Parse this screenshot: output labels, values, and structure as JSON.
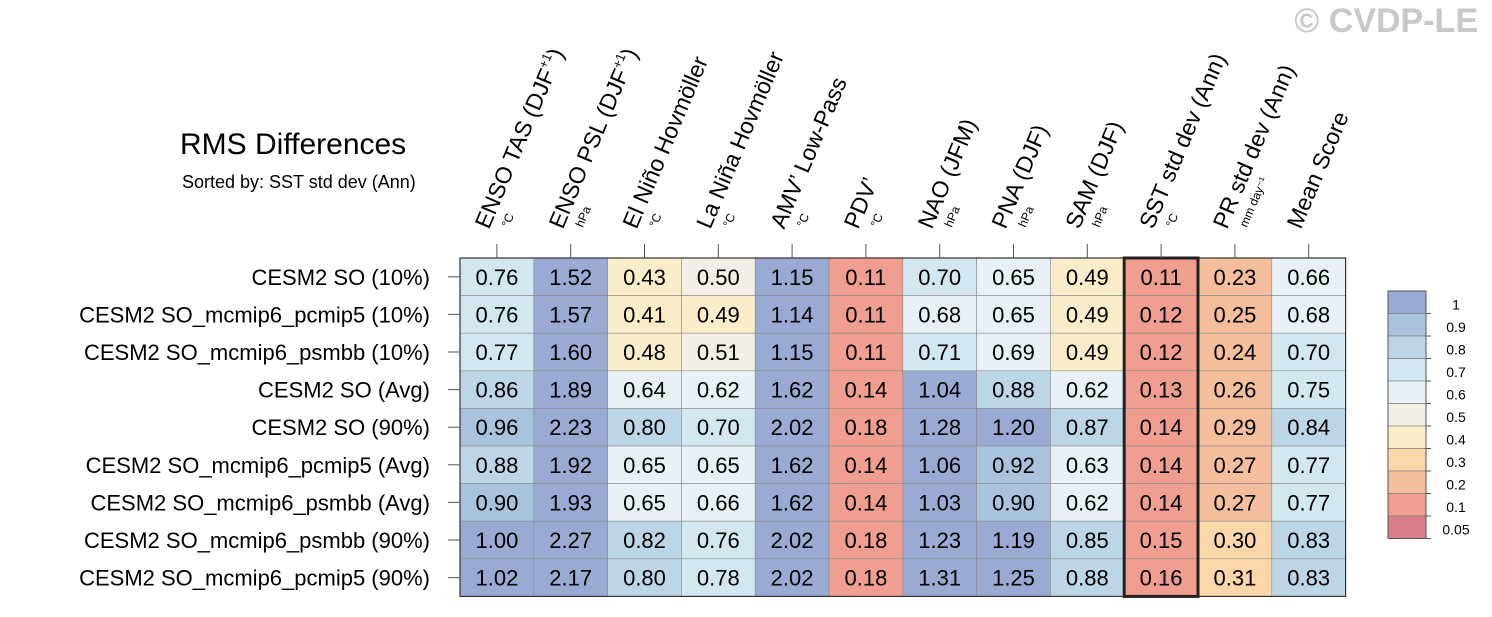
{
  "watermark": "© CVDP-LE",
  "chart_data": {
    "type": "heatmap",
    "title": "RMS Differences",
    "subtitle": "Sorted by: SST std dev (Ann)",
    "columns": [
      {
        "name": "ENSO TAS (DJF",
        "sup": "+1",
        "tail": ")",
        "unit": "°C"
      },
      {
        "name": "ENSO PSL (DJF",
        "sup": "+1",
        "tail": ")",
        "unit": "hPa"
      },
      {
        "name": "El Niño Hovmöller",
        "sup": "",
        "tail": "",
        "unit": "°C"
      },
      {
        "name": "La Niña Hovmöller",
        "sup": "",
        "tail": "",
        "unit": "°C"
      },
      {
        "name": "AMV’ Low-Pass",
        "sup": "",
        "tail": "",
        "unit": "°C"
      },
      {
        "name": "PDV’",
        "sup": "",
        "tail": "",
        "unit": "°C"
      },
      {
        "name": "NAO (JFM)",
        "sup": "",
        "tail": "",
        "unit": "hPa"
      },
      {
        "name": "PNA (DJF)",
        "sup": "",
        "tail": "",
        "unit": "hPa"
      },
      {
        "name": "SAM (DJF)",
        "sup": "",
        "tail": "",
        "unit": "hPa"
      },
      {
        "name": "SST std dev (Ann)",
        "sup": "",
        "tail": "",
        "unit": "°C"
      },
      {
        "name": "PR std dev (Ann)",
        "sup": "",
        "tail": "",
        "unit": "mm day⁻¹"
      },
      {
        "name": "Mean Score",
        "sup": "",
        "tail": "",
        "unit": ""
      }
    ],
    "rows": [
      "CESM2 SO (10%)",
      "CESM2 SO_mcmip6_pcmip5 (10%)",
      "CESM2 SO_mcmip6_psmbb (10%)",
      "CESM2 SO (Avg)",
      "CESM2 SO (90%)",
      "CESM2 SO_mcmip6_pcmip5 (Avg)",
      "CESM2 SO_mcmip6_psmbb (Avg)",
      "CESM2 SO_mcmip6_psmbb (90%)",
      "CESM2 SO_mcmip6_pcmip5 (90%)"
    ],
    "values": [
      [
        0.76,
        1.52,
        0.43,
        0.5,
        1.15,
        0.11,
        0.7,
        0.65,
        0.49,
        0.11,
        0.23,
        0.66
      ],
      [
        0.76,
        1.57,
        0.41,
        0.49,
        1.14,
        0.11,
        0.68,
        0.65,
        0.49,
        0.12,
        0.25,
        0.68
      ],
      [
        0.77,
        1.6,
        0.48,
        0.51,
        1.15,
        0.11,
        0.71,
        0.69,
        0.49,
        0.12,
        0.24,
        0.7
      ],
      [
        0.86,
        1.89,
        0.64,
        0.62,
        1.62,
        0.14,
        1.04,
        0.88,
        0.62,
        0.13,
        0.26,
        0.75
      ],
      [
        0.96,
        2.23,
        0.8,
        0.7,
        2.02,
        0.18,
        1.28,
        1.2,
        0.87,
        0.14,
        0.29,
        0.84
      ],
      [
        0.88,
        1.92,
        0.65,
        0.65,
        1.62,
        0.14,
        1.06,
        0.92,
        0.63,
        0.14,
        0.27,
        0.77
      ],
      [
        0.9,
        1.93,
        0.65,
        0.66,
        1.62,
        0.14,
        1.03,
        0.9,
        0.62,
        0.14,
        0.27,
        0.77
      ],
      [
        1.0,
        2.27,
        0.82,
        0.76,
        2.02,
        0.18,
        1.23,
        1.19,
        0.85,
        0.15,
        0.3,
        0.83
      ],
      [
        1.02,
        2.17,
        0.8,
        0.78,
        2.02,
        0.18,
        1.31,
        1.25,
        0.88,
        0.16,
        0.31,
        0.83
      ]
    ],
    "highlight_column": "SST std dev (Ann)",
    "colorbar": {
      "levels": [
        "1",
        "0.9",
        "0.8",
        "0.7",
        "0.6",
        "0.5",
        "0.4",
        "0.3",
        "0.2",
        "0.1",
        "0.05"
      ],
      "colors": [
        "#9aaad3",
        "#a9c3dd",
        "#bdd6e6",
        "#d3e7f1",
        "#e7f1f6",
        "#f2f0e6",
        "#fbedc9",
        "#fbd7aa",
        "#f5bf9e",
        "#ef9e8f",
        "#db7d8c"
      ]
    }
  }
}
